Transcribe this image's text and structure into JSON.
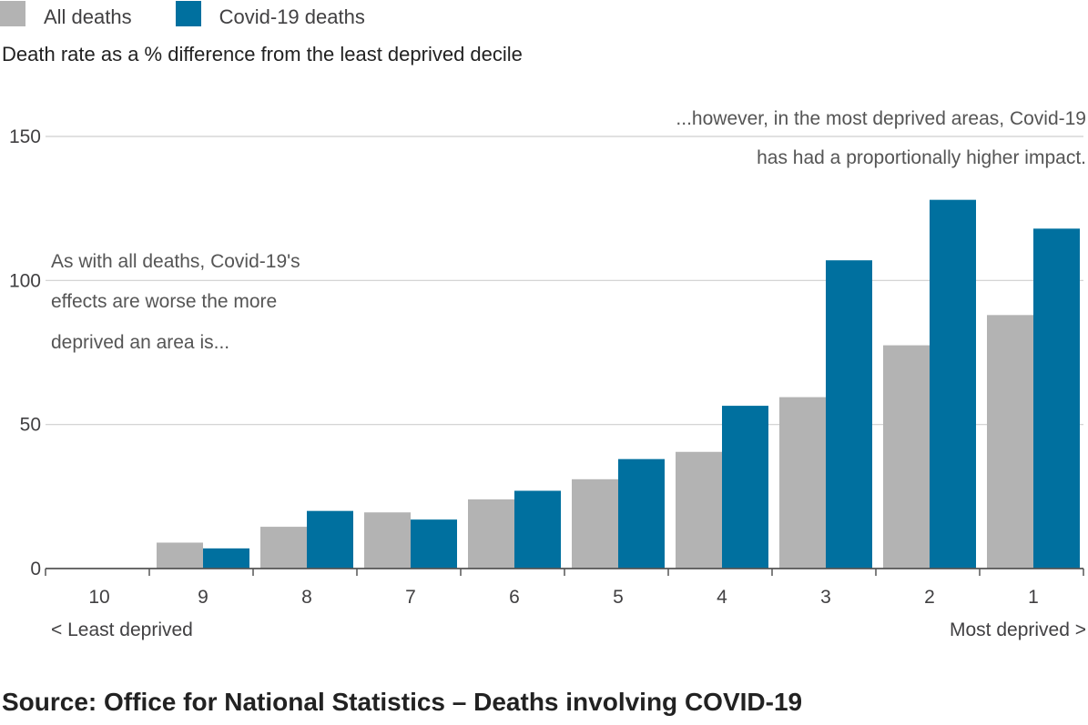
{
  "legend": {
    "items": [
      {
        "label": "All deaths",
        "color": "#b3b3b3"
      },
      {
        "label": "Covid-19 deaths",
        "color": "#00709f"
      }
    ]
  },
  "subtitle": "Death rate as a % difference from the least deprived decile",
  "source": "Source: Office for National Statistics – Deaths involving COVID-19",
  "chart_data": {
    "type": "bar",
    "title": "",
    "xlabel": "",
    "ylabel": "Death rate as a % difference from the least deprived decile",
    "categories": [
      "10",
      "9",
      "8",
      "7",
      "6",
      "5",
      "4",
      "3",
      "2",
      "1"
    ],
    "series": [
      {
        "name": "All deaths",
        "color": "#b3b3b3",
        "values": [
          0,
          9,
          14.5,
          19.5,
          24,
          31,
          40.5,
          59.5,
          77.5,
          88
        ]
      },
      {
        "name": "Covid-19 deaths",
        "color": "#00709f",
        "values": [
          0,
          7,
          20,
          17,
          27,
          38,
          56.5,
          107,
          128,
          118
        ]
      }
    ],
    "ylim": [
      0,
      150
    ],
    "yticks": [
      0,
      50,
      100,
      150
    ],
    "grid": true,
    "legend_position": "top-left",
    "x_end_labels": {
      "left": "< Least deprived",
      "right": "Most deprived >"
    },
    "annotations": {
      "left": [
        "As with all deaths, Covid-19's",
        "effects are worse the more",
        "deprived an area is..."
      ],
      "right": [
        "...however, in the most deprived areas, Covid-19",
        "has had a proportionally higher impact."
      ]
    }
  }
}
